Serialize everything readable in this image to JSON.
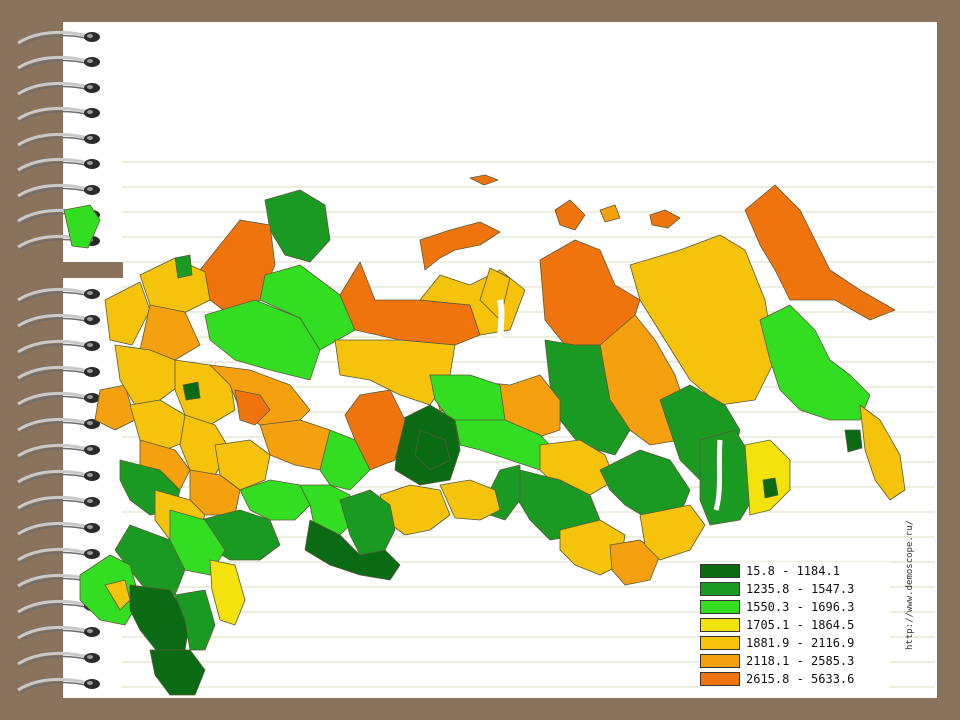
{
  "map": {
    "region_fill_colors": [
      "#0a6b14",
      "#1a9a22",
      "#33dd22",
      "#f4e20c",
      "#f5c20c",
      "#f5a00f",
      "#f0740e"
    ],
    "background_color": "#8a735d",
    "paper_color": "#ffffff",
    "rule_line_color": "#d8dcc0",
    "ring_icon": "spiral-binding-ring-icon"
  },
  "legend": {
    "items": [
      {
        "label": "15.8 - 1184.1",
        "color": "#0a6b14"
      },
      {
        "label": "1235.8 - 1547.3",
        "color": "#1a9a22"
      },
      {
        "label": "1550.3 - 1696.3",
        "color": "#33dd22"
      },
      {
        "label": "1705.1 - 1864.5",
        "color": "#f4e20c"
      },
      {
        "label": "1881.9 - 2116.9",
        "color": "#f5c20c"
      },
      {
        "label": "2118.1 - 2585.3",
        "color": "#f5a00f"
      },
      {
        "label": "2615.8 - 5633.6",
        "color": "#f0740e"
      }
    ]
  },
  "watermark": "http://www.demoscope.ru/"
}
